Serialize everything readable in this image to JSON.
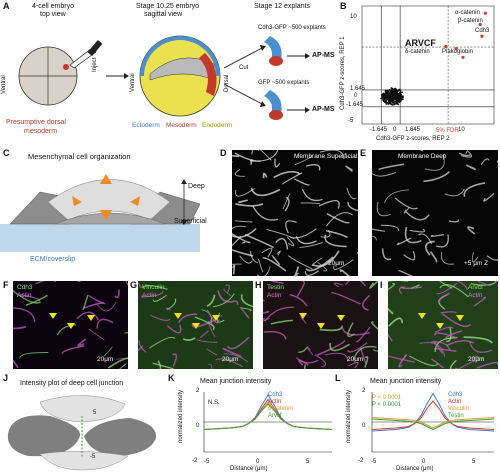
{
  "panels": {
    "A": {
      "label": "A",
      "title_4cell_1": "4-cell embryo",
      "title_4cell_2": "top view",
      "title_stage10_1": "Stage 10.25 embryo",
      "title_stage10_2": "sagittal view",
      "title_stage12": "Stage 12 explants",
      "ventral": "Ventral",
      "dorsal": "Dorsal",
      "ventral2": "Ventral",
      "dorsal2": "Dorsal",
      "inject_label": "Inject",
      "presumptive_1": "Presumptive dorsal",
      "presumptive_2": "mesoderm",
      "ectoderm": "Ectoderm",
      "mesoderm": "Mesoderm",
      "endoderm": "Endoderm",
      "cut": "Cut",
      "cdh3_line": "Cdh3-GFP ~500 explants",
      "gfp_line": "GFP ~500 explants",
      "apms_1": "AP-MS",
      "apms_2": "AP-MS"
    },
    "B": {
      "label": "B",
      "ylabel": "Cdh3-GFP z-scores, REP 1",
      "xlabel": "Cdh3-GFP z-scores, REP 2",
      "fdr": "5% FDR",
      "highlight": "ARVCF",
      "labels": [
        "α-catenin",
        "β-catenin",
        "Cdh3",
        "δ-catenin",
        "Plakoglobin"
      ],
      "ytick_10": "10",
      "ytick_1645": "1.645",
      "ytick_0": "0",
      "ytick_m1645": "-1.645",
      "xtick_m1645": "-1.645",
      "xtick_0": "0",
      "xtick_1645": "1.645",
      "xtick_10": "10",
      "ytick_m5": "-5"
    },
    "C": {
      "label": "C",
      "title": "Mesenchymal cell organization",
      "deep": "Deep",
      "superficial": "Superficial",
      "substrate": "ECM/coverslip"
    },
    "D": {
      "label": "D",
      "title": "Membrane Superficial",
      "scale": "20μm"
    },
    "E": {
      "label": "E",
      "title": "Membrane Deep",
      "scale": "+5 μm Z"
    },
    "F": {
      "label": "F",
      "ch1": "Cdh3",
      "ch2": "Actin",
      "scale": "20μm"
    },
    "G": {
      "label": "G",
      "ch1": "Vinculin",
      "ch2": "Actin",
      "scale": "20μm"
    },
    "H": {
      "label": "H",
      "ch1": "Testin",
      "ch2": "Actin",
      "scale": "20μm"
    },
    "I": {
      "label": "I",
      "ch1": "Arvcf",
      "ch2": "Actin",
      "scale": "20μm"
    },
    "J": {
      "label": "J",
      "title": "Intensity plot of deep cell junction",
      "top": "5",
      "bottom": "-5"
    },
    "K": {
      "label": "K",
      "title": "Mean junction intensity",
      "ns": "N.S.",
      "ylabel": "normalized intensity",
      "xlabel": "Distance (μm)",
      "legend": [
        "Cdh3",
        "Actin",
        "α-catenin",
        "Arvcf"
      ],
      "yt_2": "2",
      "yt_0": "0",
      "yt_m2": "-2",
      "xt_m5": "-5",
      "xt_0": "0",
      "xt_5": "5"
    },
    "L": {
      "label": "L",
      "title": "Mean junction intensity",
      "p1": "P < 0.0001",
      "p2": "P < 0.0001",
      "ylabel": "normalized intensity",
      "xlabel": "Distance (μm)",
      "legend": [
        "Cdh3",
        "Actin",
        "Vinculin",
        "Testin"
      ],
      "yt_2": "2",
      "yt_0": "0",
      "yt_m2": "-2",
      "xt_m5": "-5",
      "xt_0": "0",
      "xt_5": "5"
    }
  },
  "chart_data": [
    {
      "type": "scatter",
      "ylabel": "Cdh3-GFP z-scores, REP 1",
      "xlabel": "Cdh3-GFP z-scores, REP 2",
      "xlim": [
        -5,
        18
      ],
      "ylim": [
        -5,
        18
      ],
      "thresholds": [
        -1.645,
        1.645,
        10
      ],
      "highlighted_points": [
        {
          "name": "α-catenin",
          "x": 16.5,
          "y": 16.6
        },
        {
          "name": "β-catenin",
          "x": 15.6,
          "y": 14.4
        },
        {
          "name": "Cdh3",
          "x": 15.9,
          "y": 12.1
        },
        {
          "name": "ARVCF",
          "x": 9.6,
          "y": 10.1
        },
        {
          "name": "δ-catenin",
          "x": 11.4,
          "y": 9.7
        },
        {
          "name": "Plakoglobin",
          "x": 12.6,
          "y": 8.0
        }
      ]
    },
    {
      "type": "line",
      "title": "Mean junction intensity",
      "xlabel": "Distance (μm)",
      "ylabel": "normalized intensity",
      "xlim": [
        -5,
        5
      ],
      "ylim": [
        -2,
        2
      ],
      "x": [
        -5,
        -4,
        -3,
        -2,
        -1.5,
        -1,
        -0.5,
        0,
        0.5,
        1,
        1.5,
        2,
        3,
        4,
        5
      ],
      "series": [
        {
          "name": "Cdh3",
          "color": "#3a7bd5",
          "values": [
            -0.5,
            -0.45,
            -0.4,
            -0.3,
            -0.1,
            0.3,
            1.1,
            1.8,
            1.1,
            0.3,
            -0.1,
            -0.3,
            -0.4,
            -0.45,
            -0.5
          ]
        },
        {
          "name": "Actin",
          "color": "#d43a2a",
          "values": [
            -0.5,
            -0.45,
            -0.4,
            -0.3,
            -0.1,
            0.25,
            0.9,
            1.5,
            0.9,
            0.25,
            -0.1,
            -0.3,
            -0.4,
            -0.45,
            -0.5
          ]
        },
        {
          "name": "α-catenin",
          "color": "#e39b2c",
          "values": [
            -0.5,
            -0.45,
            -0.4,
            -0.3,
            -0.1,
            0.2,
            0.8,
            1.3,
            0.8,
            0.2,
            -0.1,
            -0.3,
            -0.4,
            -0.45,
            -0.5
          ]
        },
        {
          "name": "Arvcf",
          "color": "#3a9a3a",
          "values": [
            -0.5,
            -0.45,
            -0.4,
            -0.3,
            -0.1,
            0.2,
            0.75,
            1.2,
            0.75,
            0.2,
            -0.1,
            -0.3,
            -0.4,
            -0.45,
            -0.5
          ]
        }
      ]
    },
    {
      "type": "line",
      "title": "Mean junction intensity",
      "xlabel": "Distance (μm)",
      "ylabel": "normalized intensity",
      "xlim": [
        -5,
        5
      ],
      "ylim": [
        -2,
        2
      ],
      "x": [
        -5,
        -4,
        -3,
        -2,
        -1.5,
        -1,
        -0.5,
        0,
        0.5,
        1,
        1.5,
        2,
        3,
        4,
        5
      ],
      "series": [
        {
          "name": "Cdh3",
          "color": "#3a7bd5",
          "values": [
            -0.6,
            -0.55,
            -0.5,
            -0.35,
            -0.1,
            0.4,
            1.2,
            1.9,
            1.2,
            0.4,
            -0.1,
            -0.35,
            -0.5,
            -0.55,
            -0.6
          ]
        },
        {
          "name": "Actin",
          "color": "#d43a2a",
          "values": [
            -0.5,
            -0.45,
            -0.4,
            -0.3,
            -0.1,
            0.25,
            0.9,
            1.4,
            0.9,
            0.25,
            -0.1,
            -0.3,
            -0.4,
            -0.45,
            -0.5
          ]
        },
        {
          "name": "Vinculin",
          "color": "#e39b2c",
          "values": [
            0.3,
            0.25,
            0.2,
            0.15,
            0.1,
            0.0,
            -0.2,
            -0.4,
            -0.2,
            0.0,
            0.1,
            0.15,
            0.2,
            0.25,
            0.3
          ]
        },
        {
          "name": "Testin",
          "color": "#3a9a3a",
          "values": [
            0.2,
            0.15,
            0.1,
            0.05,
            0.0,
            -0.1,
            -0.3,
            -0.5,
            -0.3,
            -0.1,
            0.0,
            0.05,
            0.1,
            0.15,
            0.2
          ]
        }
      ]
    }
  ]
}
